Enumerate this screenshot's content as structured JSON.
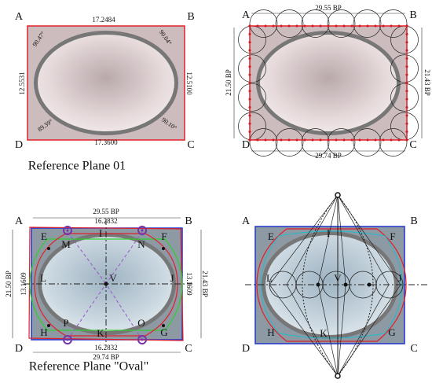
{
  "panel_1": {
    "corners": [
      "A",
      "B",
      "C",
      "D"
    ],
    "top": "17.2484",
    "bottom": "17.3600",
    "left": "12.5531",
    "right": "12.5100",
    "angles": [
      "90.47°",
      "90.04°",
      "89.39°",
      "90.10°"
    ],
    "caption": "Reference Plane 01"
  },
  "panel_2": {
    "corners": [
      "A",
      "B",
      "C",
      "D"
    ],
    "top": "29.55 BP",
    "bottom": "29.74 BP",
    "left": "21.50 BP",
    "right": "21.43 BP"
  },
  "panel_3": {
    "corners": [
      "A",
      "B",
      "C",
      "D"
    ],
    "top": "29.55 BP",
    "top_inner": "16.2832",
    "bottom_inner": "16.2832",
    "bottom": "29.74 BP",
    "left": "21.50 BP",
    "left_inner": "13.1609",
    "right_inner": "13.1609",
    "right": "21.43 BP",
    "points": [
      "E",
      "F",
      "G",
      "H",
      "I",
      "J",
      "K",
      "L",
      "M",
      "N",
      "O",
      "P",
      "V"
    ],
    "caption": "Reference Plane \"Oval\""
  },
  "panel_4": {
    "corners": [
      "A",
      "B",
      "C",
      "D"
    ],
    "points": [
      "E",
      "F",
      "G",
      "H",
      "I",
      "J",
      "K",
      "L",
      "V"
    ]
  }
}
